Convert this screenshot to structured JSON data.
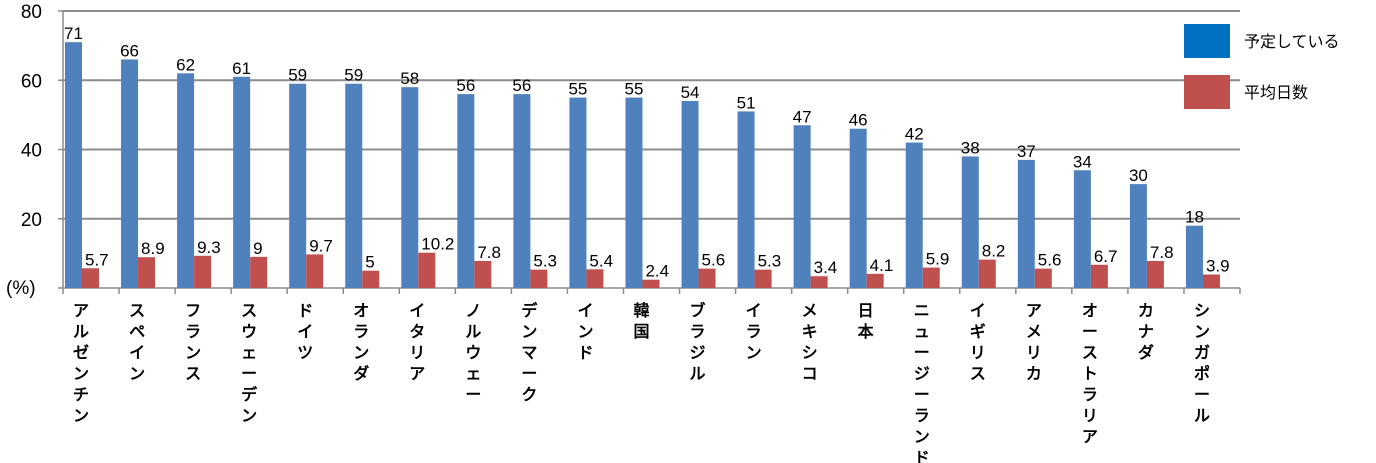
{
  "chart_data": {
    "type": "bar",
    "unit_label": "(%)",
    "ylim": [
      0,
      80
    ],
    "yticks": [
      0,
      20,
      40,
      60,
      80
    ],
    "ytick_labels": [
      "",
      "20",
      "40",
      "60",
      "80"
    ],
    "grid": true,
    "legend_position": "top-right",
    "categories": [
      "アルゼンチン",
      "スペイン",
      "フランス",
      "スウェーデン",
      "ドイツ",
      "オランダ",
      "イタリア",
      "ノルウェー",
      "デンマーク",
      "インド",
      "韓国",
      "ブラジル",
      "イラン",
      "メキシコ",
      "日本",
      "ニュージーランド",
      "イギリス",
      "アメリカ",
      "オーストラリア",
      "カナダ",
      "シンガポール"
    ],
    "series": [
      {
        "name": "予定している",
        "color": "#4f81bd",
        "values": [
          71,
          66,
          62,
          61,
          59,
          59,
          58,
          56,
          56,
          55,
          55,
          54,
          51,
          47,
          46,
          42,
          38,
          37,
          34,
          30,
          18
        ],
        "labels": [
          "71",
          "66",
          "62",
          "61",
          "59",
          "59",
          "58",
          "56",
          "56",
          "55",
          "55",
          "54",
          "51",
          "47",
          "46",
          "42",
          "38",
          "37",
          "34",
          "30",
          "18"
        ]
      },
      {
        "name": "平均日数",
        "color": "#c0504d",
        "values": [
          5.7,
          8.9,
          9.3,
          9,
          9.7,
          5,
          10.2,
          7.8,
          5.3,
          5.4,
          2.4,
          5.6,
          5.3,
          3.4,
          4.1,
          5.9,
          8.2,
          5.6,
          6.7,
          7.8,
          3.9
        ],
        "labels": [
          "5.7",
          "8.9",
          "9.3",
          "9",
          "9.7",
          "5",
          "10.2",
          "7.8",
          "5.3",
          "5.4",
          "2.4",
          "5.6",
          "5.3",
          "3.4",
          "4.1",
          "5.9",
          "8.2",
          "5.6",
          "6.7",
          "7.8",
          "3.9"
        ]
      }
    ]
  },
  "legend_colors": {
    "planned": "#0070c0",
    "avg_days": "#c0504d"
  }
}
